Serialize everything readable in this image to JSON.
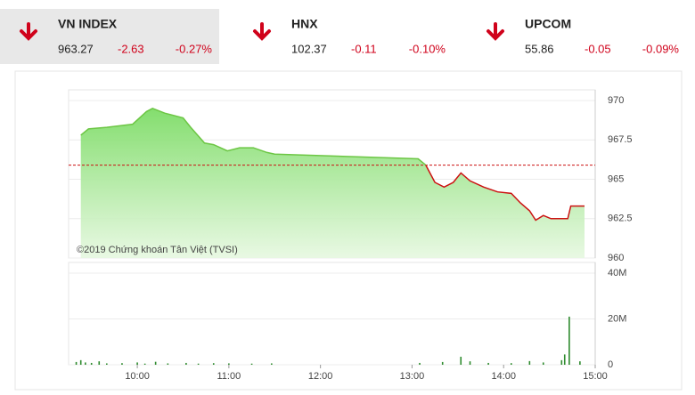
{
  "indices": [
    {
      "name": "VN INDEX",
      "value": "963.27",
      "change": "-2.63",
      "pct": "-0.27%"
    },
    {
      "name": "HNX",
      "value": "102.37",
      "change": "-0.11",
      "pct": "-0.10%"
    },
    {
      "name": "UPCOM",
      "value": "55.86",
      "change": "-0.05",
      "pct": "-0.09%"
    }
  ],
  "chart_data": [
    {
      "type": "line",
      "annotation": "©2019 Chứng khoán Tân Việt (TVSI)",
      "x": [
        563,
        568,
        580,
        597,
        606,
        610,
        618,
        630,
        635,
        644,
        650,
        659,
        667,
        676,
        685,
        690,
        784,
        789,
        795,
        801,
        807,
        812,
        818,
        827,
        836,
        845,
        851,
        857,
        861,
        866,
        871,
        882,
        884,
        893
      ],
      "values": [
        967.8,
        968.2,
        968.3,
        968.5,
        969.3,
        969.5,
        969.2,
        968.9,
        968.3,
        967.3,
        967.2,
        966.8,
        967.0,
        967.0,
        966.7,
        966.6,
        966.3,
        965.9,
        964.8,
        964.5,
        964.8,
        965.4,
        964.9,
        964.5,
        964.2,
        964.1,
        963.5,
        963.0,
        962.4,
        962.7,
        962.5,
        962.5,
        963.3,
        963.3
      ],
      "color": "#6cc644",
      "down_color": "#cc1111",
      "fill_color": "#8fe07a",
      "reference": 965.9,
      "reference_color": "#cc1111",
      "xlim": [
        555,
        900
      ],
      "ylim": [
        960,
        970
      ],
      "yticks": [
        970,
        967.5,
        965,
        962.5,
        960
      ],
      "grid": true
    },
    {
      "type": "bar",
      "x": [
        560,
        563,
        566,
        570,
        575,
        580,
        590,
        600,
        605,
        612,
        620,
        632,
        640,
        650,
        660,
        675,
        688,
        785,
        800,
        812,
        818,
        830,
        845,
        857,
        866,
        878,
        880,
        883,
        890
      ],
      "values": [
        1200000,
        2000000,
        1000000,
        800000,
        1500000,
        600000,
        700000,
        1000000,
        500000,
        1300000,
        600000,
        800000,
        500000,
        700000,
        600000,
        500000,
        600000,
        800000,
        1200000,
        3500000,
        1500000,
        800000,
        700000,
        1600000,
        1000000,
        2000000,
        4500000,
        21000000,
        1500000
      ],
      "color": "#2e8b2e",
      "xlim": [
        555,
        900
      ],
      "ylim": [
        0,
        40000000
      ],
      "yticks": [
        0,
        {
          "value": 20000000,
          "label": "20M"
        },
        {
          "value": 40000000,
          "label": "40M"
        }
      ],
      "xticks": [
        {
          "value": 600,
          "label": "10:00"
        },
        {
          "value": 660,
          "label": "11:00"
        },
        {
          "value": 720,
          "label": "12:00"
        },
        {
          "value": 780,
          "label": "13:00"
        },
        {
          "value": 840,
          "label": "14:00"
        },
        {
          "value": 900,
          "label": "15:00"
        }
      ],
      "grid": true
    }
  ]
}
